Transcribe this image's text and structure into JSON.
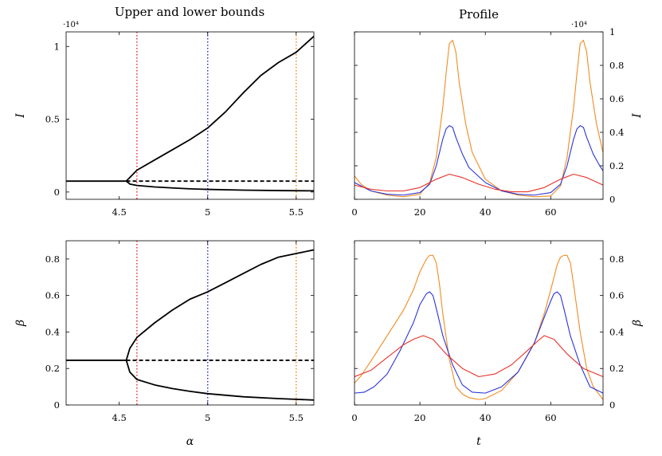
{
  "titles": {
    "left": "Upper and lower bounds",
    "right": "Profile"
  },
  "chart_data": [
    {
      "type": "line",
      "panel": "top-left",
      "xlabel": "",
      "ylabel": "I",
      "scale_label": "·10⁴",
      "xlim": [
        4.2,
        5.6
      ],
      "ylim": [
        -0.05,
        1.1
      ],
      "xticks": [
        4.5,
        5,
        5.5
      ],
      "xtick_labels": [
        "4.5",
        "5",
        "5.5"
      ],
      "yticks": [
        0,
        0.5,
        1
      ],
      "ytick_labels": [
        "0",
        "0.5",
        "1"
      ],
      "vlines": [
        {
          "x": 4.6,
          "color": "#e8322b"
        },
        {
          "x": 5.0,
          "color": "#2b35d9"
        },
        {
          "x": 5.5,
          "color": "#f08c22"
        }
      ],
      "series": [
        {
          "style": "solid",
          "color": "#000000",
          "x": [
            4.2,
            4.54
          ],
          "y": [
            0.075,
            0.075
          ]
        },
        {
          "style": "solid",
          "color": "#000000",
          "x": [
            4.54,
            4.56,
            4.6,
            4.7,
            4.8,
            4.9,
            5.0,
            5.1,
            5.2,
            5.3,
            5.4,
            5.5,
            5.6
          ],
          "y": [
            0.075,
            0.1,
            0.15,
            0.22,
            0.29,
            0.36,
            0.44,
            0.55,
            0.68,
            0.8,
            0.89,
            0.96,
            1.07
          ]
        },
        {
          "style": "solid",
          "color": "#000000",
          "x": [
            4.54,
            4.56,
            4.6,
            4.7,
            4.8,
            4.9,
            5.0,
            5.2,
            5.4,
            5.6
          ],
          "y": [
            0.075,
            0.055,
            0.045,
            0.035,
            0.028,
            0.022,
            0.018,
            0.013,
            0.01,
            0.008
          ]
        },
        {
          "style": "dashed",
          "color": "#000000",
          "x": [
            4.54,
            5.6
          ],
          "y": [
            0.075,
            0.075
          ]
        }
      ]
    },
    {
      "type": "line",
      "panel": "top-right",
      "xlabel": "",
      "ylabel": "I",
      "scale_label": "·10⁴",
      "xlim": [
        0,
        76
      ],
      "ylim": [
        0,
        1.0
      ],
      "xticks": [
        0,
        20,
        40,
        60
      ],
      "xtick_labels": [
        "0",
        "20",
        "40",
        "60"
      ],
      "yticks": [
        0,
        0.2,
        0.4,
        0.6,
        0.8,
        1
      ],
      "ytick_labels": [
        "0",
        "0.2",
        "0.4",
        "0.6",
        "0.8",
        "1"
      ],
      "series": [
        {
          "color": "#f08c22",
          "x": [
            0,
            2,
            5,
            10,
            15,
            20,
            23,
            25,
            27,
            28,
            29,
            30,
            31,
            32,
            34,
            36,
            40,
            45,
            50,
            55,
            60,
            63,
            65,
            67,
            68,
            69,
            70,
            71,
            72,
            74,
            76
          ],
          "y": [
            0.14,
            0.09,
            0.05,
            0.025,
            0.015,
            0.03,
            0.1,
            0.25,
            0.55,
            0.75,
            0.93,
            0.95,
            0.88,
            0.7,
            0.45,
            0.28,
            0.12,
            0.05,
            0.025,
            0.015,
            0.02,
            0.08,
            0.25,
            0.55,
            0.75,
            0.93,
            0.95,
            0.88,
            0.7,
            0.45,
            0.28
          ]
        },
        {
          "color": "#2b35d9",
          "x": [
            0,
            5,
            10,
            15,
            20,
            23,
            25,
            27,
            28,
            29,
            30,
            31,
            33,
            35,
            40,
            45,
            50,
            55,
            60,
            63,
            65,
            67,
            68,
            69,
            70,
            71,
            73,
            75,
            76
          ],
          "y": [
            0.1,
            0.05,
            0.03,
            0.025,
            0.04,
            0.09,
            0.2,
            0.36,
            0.42,
            0.44,
            0.43,
            0.37,
            0.27,
            0.19,
            0.1,
            0.05,
            0.03,
            0.025,
            0.04,
            0.09,
            0.2,
            0.36,
            0.42,
            0.44,
            0.43,
            0.37,
            0.27,
            0.2,
            0.17
          ]
        },
        {
          "color": "#e8322b",
          "x": [
            0,
            5,
            10,
            15,
            20,
            25,
            29,
            33,
            38,
            43,
            48,
            53,
            58,
            63,
            67,
            71,
            76
          ],
          "y": [
            0.085,
            0.06,
            0.05,
            0.05,
            0.07,
            0.12,
            0.15,
            0.13,
            0.09,
            0.06,
            0.045,
            0.045,
            0.07,
            0.12,
            0.15,
            0.13,
            0.085
          ]
        }
      ]
    },
    {
      "type": "line",
      "panel": "bottom-left",
      "xlabel": "α",
      "ylabel": "β",
      "xlim": [
        4.2,
        5.6
      ],
      "ylim": [
        0,
        0.9
      ],
      "xticks": [
        4.5,
        5,
        5.5
      ],
      "xtick_labels": [
        "4.5",
        "5",
        "5.5"
      ],
      "yticks": [
        0,
        0.2,
        0.4,
        0.6,
        0.8
      ],
      "ytick_labels": [
        "0",
        "0.2",
        "0.4",
        "0.6",
        "0.8"
      ],
      "vlines": [
        {
          "x": 4.6,
          "color": "#e8322b"
        },
        {
          "x": 5.0,
          "color": "#2b35d9"
        },
        {
          "x": 5.5,
          "color": "#f08c22"
        }
      ],
      "series": [
        {
          "style": "solid",
          "color": "#000000",
          "x": [
            4.2,
            4.54
          ],
          "y": [
            0.245,
            0.245
          ]
        },
        {
          "style": "solid",
          "color": "#000000",
          "x": [
            4.54,
            4.56,
            4.6,
            4.7,
            4.8,
            4.9,
            5.0,
            5.1,
            5.2,
            5.3,
            5.4,
            5.5,
            5.6
          ],
          "y": [
            0.245,
            0.31,
            0.37,
            0.45,
            0.52,
            0.58,
            0.62,
            0.67,
            0.72,
            0.77,
            0.81,
            0.83,
            0.85
          ]
        },
        {
          "style": "solid",
          "color": "#000000",
          "x": [
            4.54,
            4.56,
            4.6,
            4.7,
            4.8,
            4.9,
            5.0,
            5.2,
            5.4,
            5.6
          ],
          "y": [
            0.245,
            0.18,
            0.14,
            0.11,
            0.09,
            0.075,
            0.062,
            0.045,
            0.035,
            0.027
          ]
        },
        {
          "style": "dashed",
          "color": "#000000",
          "x": [
            4.54,
            5.6
          ],
          "y": [
            0.245,
            0.245
          ]
        }
      ]
    },
    {
      "type": "line",
      "panel": "bottom-right",
      "xlabel": "t",
      "ylabel": "β",
      "xlim": [
        0,
        76
      ],
      "ylim": [
        0,
        0.9
      ],
      "xticks": [
        0,
        20,
        40,
        60
      ],
      "xtick_labels": [
        "0",
        "20",
        "40",
        "60"
      ],
      "yticks": [
        0,
        0.2,
        0.4,
        0.6,
        0.8
      ],
      "ytick_labels": [
        "0",
        "0.2",
        "0.4",
        "0.6",
        "0.8"
      ],
      "series": [
        {
          "color": "#f08c22",
          "x": [
            0,
            2,
            5,
            10,
            15,
            18,
            20,
            22,
            23,
            24,
            25,
            26,
            27,
            29,
            31,
            33,
            35,
            38,
            40,
            45,
            50,
            55,
            58,
            60,
            62,
            63,
            64,
            65,
            66,
            67,
            69,
            71,
            73,
            76
          ],
          "y": [
            0.12,
            0.16,
            0.24,
            0.38,
            0.52,
            0.63,
            0.73,
            0.8,
            0.82,
            0.82,
            0.78,
            0.66,
            0.5,
            0.25,
            0.1,
            0.06,
            0.04,
            0.03,
            0.035,
            0.08,
            0.18,
            0.34,
            0.5,
            0.63,
            0.77,
            0.81,
            0.82,
            0.82,
            0.78,
            0.66,
            0.4,
            0.2,
            0.1,
            0.03
          ]
        },
        {
          "color": "#2b35d9",
          "x": [
            0,
            3,
            6,
            10,
            14,
            18,
            20,
            22,
            23,
            24,
            25,
            27,
            30,
            33,
            36,
            40,
            45,
            50,
            55,
            58,
            60,
            61,
            62,
            63,
            64,
            66,
            69,
            72,
            76
          ],
          "y": [
            0.065,
            0.07,
            0.1,
            0.17,
            0.3,
            0.45,
            0.55,
            0.61,
            0.62,
            0.6,
            0.53,
            0.38,
            0.22,
            0.11,
            0.07,
            0.065,
            0.1,
            0.18,
            0.34,
            0.48,
            0.57,
            0.61,
            0.62,
            0.6,
            0.53,
            0.38,
            0.22,
            0.1,
            0.065
          ]
        },
        {
          "color": "#e8322b",
          "x": [
            0,
            5,
            10,
            15,
            18,
            21,
            24,
            28,
            33,
            38,
            43,
            48,
            53,
            56,
            58,
            61,
            65,
            70,
            76
          ],
          "y": [
            0.155,
            0.19,
            0.26,
            0.33,
            0.36,
            0.38,
            0.36,
            0.28,
            0.2,
            0.155,
            0.17,
            0.22,
            0.3,
            0.35,
            0.38,
            0.36,
            0.28,
            0.2,
            0.155
          ]
        }
      ]
    }
  ]
}
